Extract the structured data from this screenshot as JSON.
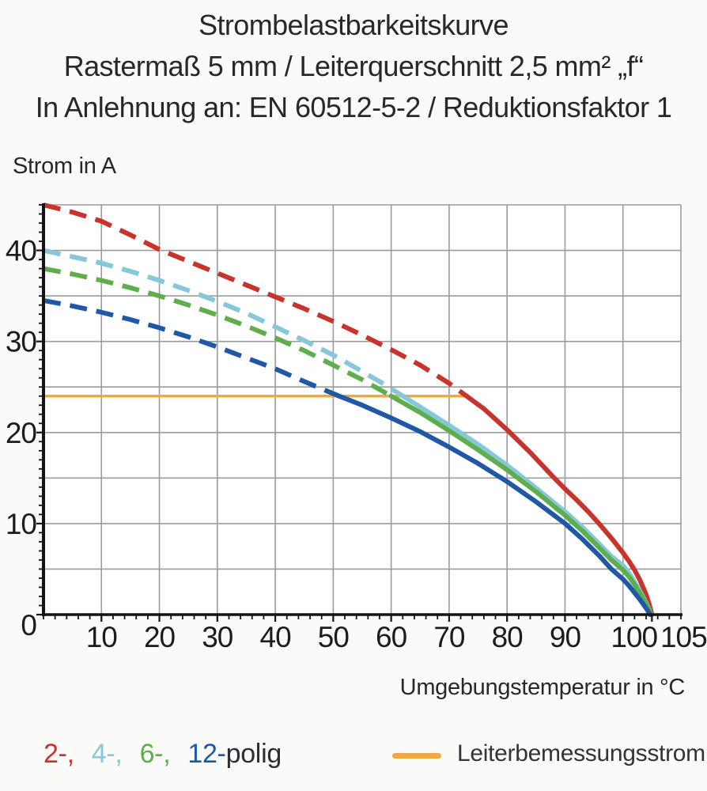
{
  "title": {
    "line1": "Strombelastbarkeitskurve",
    "line2": "Rastermaß 5 mm / Leiterquerschnitt 2,5 mm² „f“",
    "line3": "In Anlehnung an: EN 60512-5-2 / Reduktionsfaktor 1"
  },
  "axes": {
    "y_title": "Strom in A",
    "x_title": "Umgebungstemperatur in °C"
  },
  "legend": {
    "poles": [
      {
        "label": "2-,",
        "color": "#C8332B"
      },
      {
        "label": "4-,",
        "color": "#87C7DA"
      },
      {
        "label": "6-,",
        "color": "#5FAE4C"
      },
      {
        "label": "12-",
        "color": "#2058A8"
      },
      {
        "label": "polig",
        "color": "#2D2D36"
      }
    ],
    "reference": {
      "label": "Leiterbemessungsstrom",
      "color": "#F3A73F"
    }
  },
  "chart_data": {
    "type": "line",
    "title": "Strombelastbarkeitskurve",
    "xlabel": "Umgebungstemperatur in °C",
    "ylabel": "Strom in A",
    "xlim": [
      0,
      110
    ],
    "ylim": [
      0,
      45
    ],
    "x_grid_step": 10,
    "y_grid_step": 5,
    "x_minor_step": 2,
    "y_minor_step": 1,
    "grid_on": true,
    "grid_color": "#9B9B9B",
    "axis_color": "#141414",
    "tick_label_color": "#1C1C1C",
    "plot_bg": "#FFFFFF",
    "x_ticks": [
      {
        "v": 10,
        "t": "10"
      },
      {
        "v": 20,
        "t": "20"
      },
      {
        "v": 30,
        "t": "30"
      },
      {
        "v": 40,
        "t": "40"
      },
      {
        "v": 50,
        "t": "50"
      },
      {
        "v": 60,
        "t": "60"
      },
      {
        "v": 70,
        "t": "70"
      },
      {
        "v": 80,
        "t": "80"
      },
      {
        "v": 90,
        "t": "90"
      },
      {
        "v": 100,
        "t": "100",
        "dx": 14
      },
      {
        "v": 105,
        "t": "105",
        "dx": 40
      }
    ],
    "y_ticks": [
      {
        "v": 0,
        "t": "0",
        "dy": 13
      },
      {
        "v": 10,
        "t": "10"
      },
      {
        "v": 20,
        "t": "20"
      },
      {
        "v": 30,
        "t": "30"
      },
      {
        "v": 40,
        "t": "40"
      }
    ],
    "reference_line": {
      "name": "Leiterbemessungsstrom",
      "y": 24,
      "x_start": 0,
      "x_end": 73,
      "color": "#F3A73F"
    },
    "series": [
      {
        "name": "2-polig",
        "color": "#C8332B",
        "dash_until": 73,
        "points": [
          [
            0,
            45
          ],
          [
            5,
            44.2
          ],
          [
            10,
            43.2
          ],
          [
            15,
            41.7
          ],
          [
            20,
            40.1
          ],
          [
            25,
            38.8
          ],
          [
            30,
            37.5
          ],
          [
            35,
            36.2
          ],
          [
            40,
            34.9
          ],
          [
            45,
            33.6
          ],
          [
            50,
            32.2
          ],
          [
            55,
            30.7
          ],
          [
            60,
            29.1
          ],
          [
            65,
            27.4
          ],
          [
            70,
            25.4
          ],
          [
            73,
            24
          ],
          [
            76,
            22.6
          ],
          [
            80,
            20.3
          ],
          [
            84,
            17.8
          ],
          [
            88,
            15.1
          ],
          [
            90,
            13.8
          ],
          [
            92,
            12.6
          ],
          [
            94,
            11.3
          ],
          [
            96,
            9.9
          ],
          [
            98,
            8.4
          ],
          [
            100,
            6.8
          ],
          [
            101,
            5.9
          ],
          [
            102,
            4.9
          ],
          [
            103,
            3.7
          ],
          [
            104,
            2.2
          ],
          [
            104.6,
            1.0
          ],
          [
            105,
            0
          ]
        ]
      },
      {
        "name": "4-polig",
        "color": "#87C7DA",
        "dash_until": 62,
        "points": [
          [
            0,
            40
          ],
          [
            5,
            39.3
          ],
          [
            10,
            38.6
          ],
          [
            15,
            37.7
          ],
          [
            20,
            36.7
          ],
          [
            25,
            35.6
          ],
          [
            30,
            34.4
          ],
          [
            35,
            33.1
          ],
          [
            40,
            31.6
          ],
          [
            45,
            30.1
          ],
          [
            50,
            28.5
          ],
          [
            55,
            26.7
          ],
          [
            58,
            25.6
          ],
          [
            62,
            24
          ],
          [
            65,
            22.8
          ],
          [
            70,
            20.8
          ],
          [
            75,
            18.7
          ],
          [
            80,
            16.4
          ],
          [
            85,
            13.9
          ],
          [
            90,
            11.3
          ],
          [
            93,
            9.6
          ],
          [
            96,
            7.7
          ],
          [
            98,
            6.4
          ],
          [
            100,
            5.4
          ],
          [
            101,
            4.6
          ],
          [
            102,
            3.6
          ],
          [
            103,
            2.5
          ],
          [
            104,
            1.3
          ],
          [
            104.5,
            0.6
          ],
          [
            104.9,
            0
          ]
        ]
      },
      {
        "name": "6-polig",
        "color": "#5FAE4C",
        "dash_until": 60,
        "points": [
          [
            0,
            38
          ],
          [
            5,
            37.4
          ],
          [
            10,
            36.7
          ],
          [
            15,
            35.9
          ],
          [
            20,
            35.0
          ],
          [
            25,
            34.0
          ],
          [
            30,
            32.9
          ],
          [
            35,
            31.7
          ],
          [
            40,
            30.4
          ],
          [
            45,
            29.0
          ],
          [
            50,
            27.4
          ],
          [
            55,
            25.8
          ],
          [
            60,
            24
          ],
          [
            65,
            22.2
          ],
          [
            70,
            20.2
          ],
          [
            75,
            18.1
          ],
          [
            80,
            15.9
          ],
          [
            85,
            13.5
          ],
          [
            90,
            10.9
          ],
          [
            93,
            9.2
          ],
          [
            96,
            7.3
          ],
          [
            98,
            6.0
          ],
          [
            100,
            4.9
          ],
          [
            101,
            4.2
          ],
          [
            102,
            3.3
          ],
          [
            103,
            2.3
          ],
          [
            104,
            1.2
          ],
          [
            104.5,
            0.5
          ],
          [
            105,
            0
          ]
        ]
      },
      {
        "name": "12-polig",
        "color": "#2058A8",
        "dash_until": 51,
        "points": [
          [
            0,
            34.5
          ],
          [
            5,
            33.9
          ],
          [
            10,
            33.2
          ],
          [
            15,
            32.4
          ],
          [
            20,
            31.5
          ],
          [
            25,
            30.5
          ],
          [
            30,
            29.4
          ],
          [
            35,
            28.2
          ],
          [
            40,
            27.0
          ],
          [
            45,
            25.6
          ],
          [
            48,
            24.8
          ],
          [
            51,
            24
          ],
          [
            55,
            23
          ],
          [
            60,
            21.6
          ],
          [
            65,
            20.1
          ],
          [
            70,
            18.4
          ],
          [
            75,
            16.6
          ],
          [
            80,
            14.6
          ],
          [
            85,
            12.4
          ],
          [
            90,
            10
          ],
          [
            93,
            8.3
          ],
          [
            96,
            6.4
          ],
          [
            98,
            5.0
          ],
          [
            100,
            3.9
          ],
          [
            101,
            3.2
          ],
          [
            102,
            2.4
          ],
          [
            103,
            1.6
          ],
          [
            104,
            0.7
          ],
          [
            104.7,
            0
          ]
        ]
      }
    ]
  }
}
